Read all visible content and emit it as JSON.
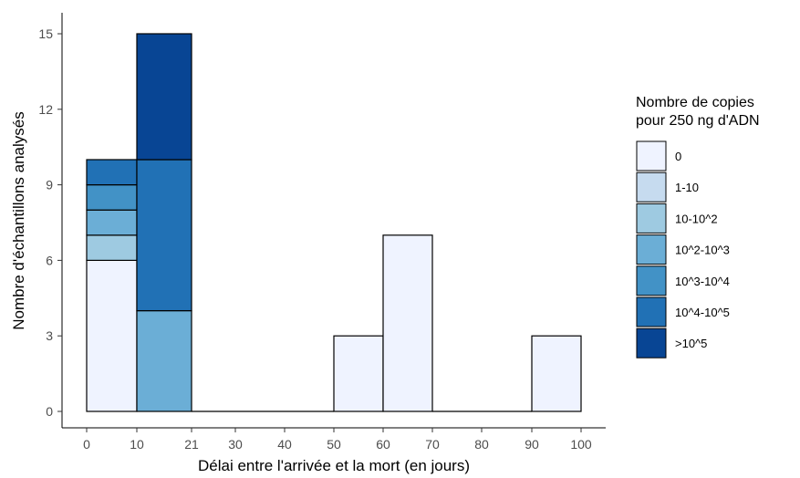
{
  "chart_data": {
    "type": "bar",
    "stacked": true,
    "xlabel": "Délai entre l'arrivée et la mort (en jours)",
    "ylabel": "Nombre d'échantillons analysés",
    "ylim": [
      0,
      15.5
    ],
    "yticks": [
      0,
      3,
      6,
      9,
      12,
      15
    ],
    "xticks": [
      "0",
      "10",
      "21",
      "30",
      "40",
      "50",
      "60",
      "70",
      "80",
      "90",
      "100"
    ],
    "grid": false,
    "legend": {
      "title_lines": [
        "Nombre de copies",
        "pour 250 ng d'ADN"
      ],
      "position": "right"
    },
    "series": [
      {
        "name": "0",
        "color": "#eff3ff"
      },
      {
        "name": "1-10",
        "color": "#c6dbef"
      },
      {
        "name": "10-10^2",
        "color": "#9ecae1"
      },
      {
        "name": "10^2-10^3",
        "color": "#6baed6"
      },
      {
        "name": "10^3-10^4",
        "color": "#4292c6"
      },
      {
        "name": "10^4-10^5",
        "color": "#2171b5"
      },
      {
        "name": ">10^5",
        "color": "#084594"
      }
    ],
    "bins": [
      {
        "range": "0-10",
        "counts": {
          "0": 6,
          "10-10^2": 1,
          "10^2-10^3": 1,
          "10^3-10^4": 1,
          "10^4-10^5": 1
        }
      },
      {
        "range": "10-21",
        "counts": {
          "10^2-10^3": 4,
          "10^4-10^5": 6,
          ">10^5": 5
        }
      },
      {
        "range": "21-30",
        "counts": {}
      },
      {
        "range": "30-40",
        "counts": {}
      },
      {
        "range": "40-50",
        "counts": {}
      },
      {
        "range": "50-60",
        "counts": {
          "0": 3
        }
      },
      {
        "range": "60-70",
        "counts": {
          "0": 7
        }
      },
      {
        "range": "70-80",
        "counts": {}
      },
      {
        "range": "80-90",
        "counts": {}
      },
      {
        "range": "90-100",
        "counts": {
          "0": 3
        }
      }
    ]
  }
}
